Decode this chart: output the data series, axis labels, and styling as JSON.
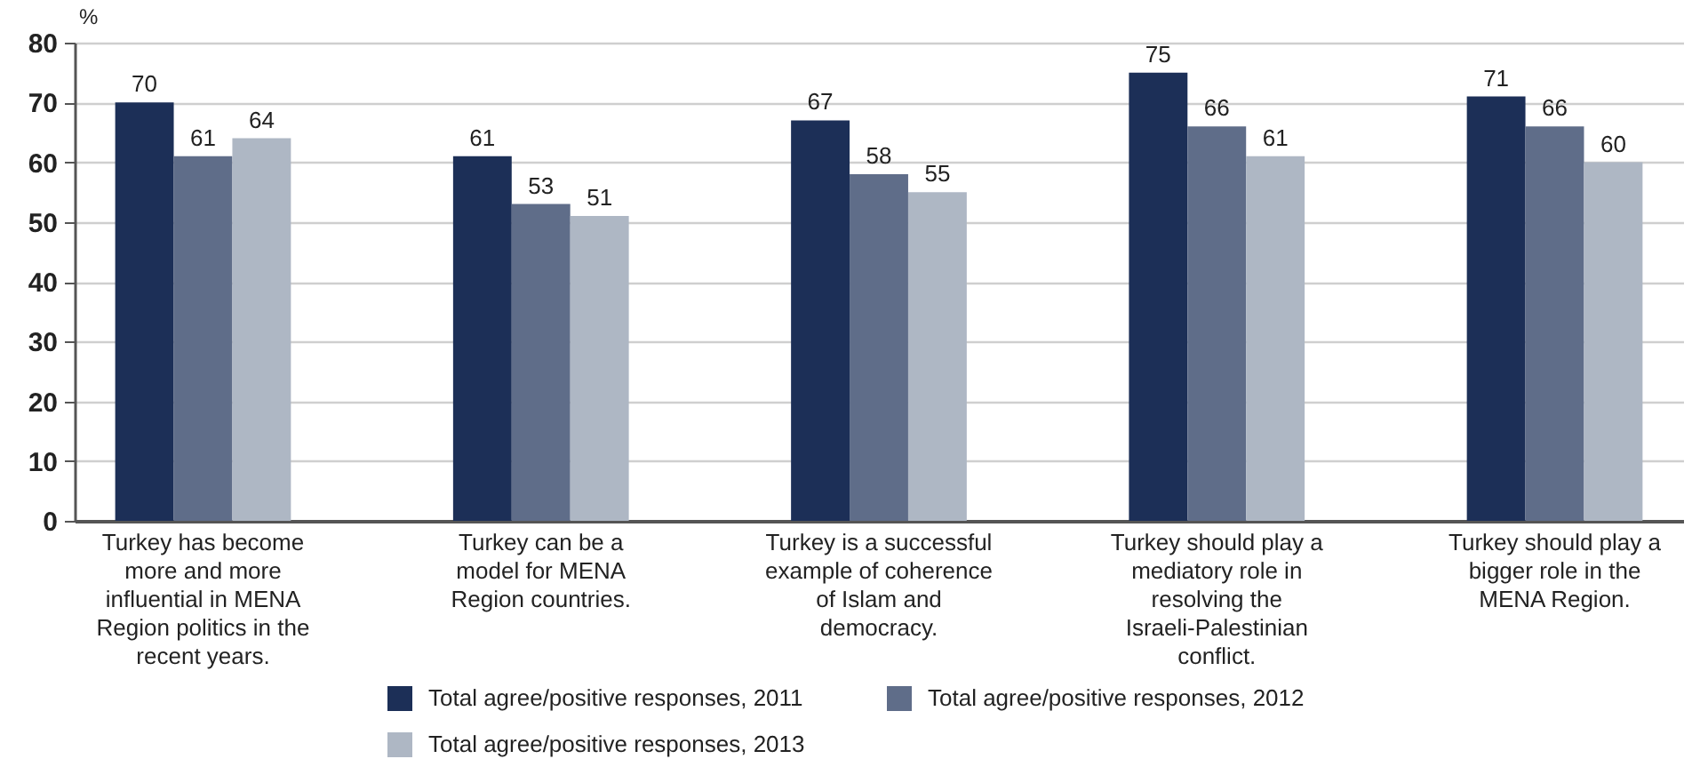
{
  "chart_data": {
    "type": "bar",
    "ylabel": "%",
    "categories": [
      "Turkey has become more and more influential in MENA Region politics in the recent years.",
      "Turkey can be a model for MENA Region countries.",
      "Turkey is a successful example of coherence of Islam and democracy.",
      "Turkey should play a mediatory role in resolving the Israeli-Palestinian conflict.",
      "Turkey should play a bigger role in the MENA Region."
    ],
    "series": [
      {
        "name": "Total agree/positive responses, 2011",
        "color": "#1c2f57",
        "values": [
          70,
          61,
          67,
          75,
          71
        ]
      },
      {
        "name": "Total agree/positive responses, 2012",
        "color": "#5f6d89",
        "values": [
          61,
          53,
          58,
          66,
          66
        ]
      },
      {
        "name": "Total agree/positive responses, 2013",
        "color": "#aeb7c4",
        "values": [
          64,
          51,
          55,
          61,
          60
        ]
      }
    ],
    "ylim": [
      0,
      80
    ],
    "yticks": [
      0,
      10,
      20,
      30,
      40,
      50,
      60,
      70,
      80
    ],
    "grid": "y",
    "legend": "bottom",
    "data_labels": true
  }
}
